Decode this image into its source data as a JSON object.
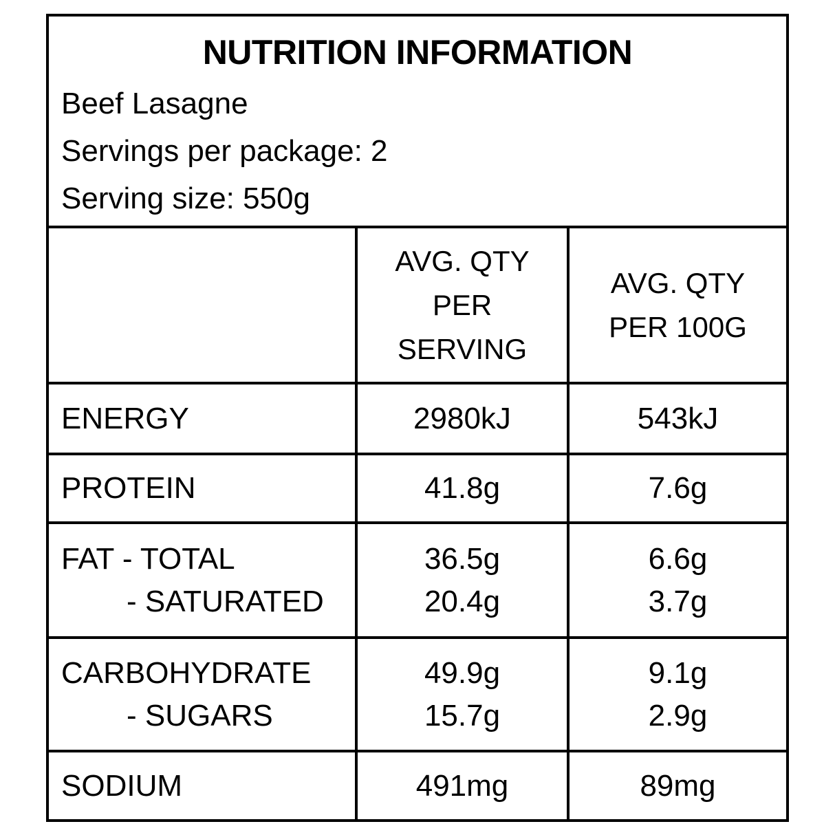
{
  "colors": {
    "background": "#ffffff",
    "border": "#000000",
    "text": "#000000"
  },
  "header": {
    "title": "NUTRITION INFORMATION",
    "product_name": "Beef Lasagne",
    "servings_per_package": "Servings per package: 2",
    "serving_size": "Serving size: 550g"
  },
  "table": {
    "column_headers": {
      "per_serving": {
        "label": "AVG. QTY PER SERVING",
        "lines": [
          "AVG. QTY",
          "PER",
          "SERVING"
        ]
      },
      "per_100g": {
        "label": "AVG. QTY PER 100G",
        "lines": [
          "AVG. QTY",
          "PER 100G"
        ]
      }
    },
    "rows": [
      {
        "label": "ENERGY",
        "per_serving": "2980kJ",
        "per_100g": "543kJ"
      },
      {
        "label": "PROTEIN",
        "per_serving": "41.8g",
        "per_100g": "7.6g"
      },
      {
        "label": "FAT - TOTAL",
        "per_serving": "36.5g",
        "per_100g": "6.6g",
        "sub": {
          "label": "- SATURATED",
          "per_serving": "20.4g",
          "per_100g": "3.7g"
        }
      },
      {
        "label": "CARBOHYDRATE",
        "per_serving": "49.9g",
        "per_100g": "9.1g",
        "sub": {
          "label": "- SUGARS",
          "per_serving": "15.7g",
          "per_100g": "2.9g"
        }
      },
      {
        "label": "SODIUM",
        "per_serving": "491mg",
        "per_100g": "89mg"
      }
    ]
  }
}
